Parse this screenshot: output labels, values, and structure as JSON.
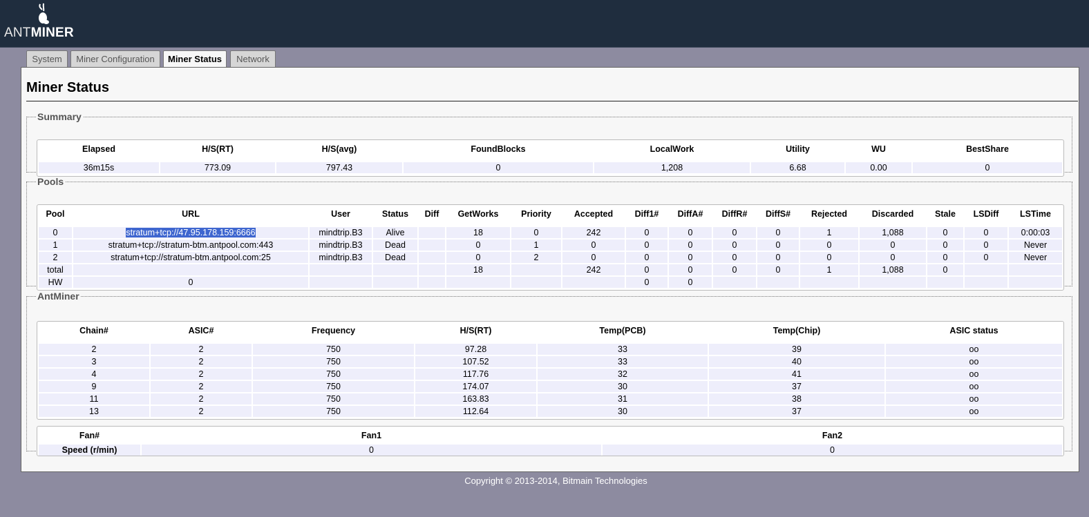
{
  "brand": {
    "name_part1": "ANT",
    "name_part2": "MINER"
  },
  "tabs": [
    {
      "label": "System",
      "active": false
    },
    {
      "label": "Miner Configuration",
      "active": false
    },
    {
      "label": "Miner Status",
      "active": true
    },
    {
      "label": "Network",
      "active": false
    }
  ],
  "page_title": "Miner Status",
  "summary": {
    "legend": "Summary",
    "headers": [
      "Elapsed",
      "H/S(RT)",
      "H/S(avg)",
      "FoundBlocks",
      "LocalWork",
      "Utility",
      "WU",
      "BestShare"
    ],
    "row": [
      "36m15s",
      "773.09",
      "797.43",
      "0",
      "1,208",
      "6.68",
      "0.00",
      "0"
    ]
  },
  "pools": {
    "legend": "Pools",
    "headers": [
      "Pool",
      "URL",
      "User",
      "Status",
      "Diff",
      "GetWorks",
      "Priority",
      "Accepted",
      "Diff1#",
      "DiffA#",
      "DiffR#",
      "DiffS#",
      "Rejected",
      "Discarded",
      "Stale",
      "LSDiff",
      "LSTime"
    ],
    "rows": [
      [
        "0",
        "stratum+tcp://47.95.178.159:6666",
        "mindtrip.B3",
        "Alive",
        "",
        "18",
        "0",
        "242",
        "0",
        "0",
        "0",
        "0",
        "1",
        "1,088",
        "0",
        "0",
        "0:00:03"
      ],
      [
        "1",
        "stratum+tcp://stratum-btm.antpool.com:443",
        "mindtrip.B3",
        "Dead",
        "",
        "0",
        "1",
        "0",
        "0",
        "0",
        "0",
        "0",
        "0",
        "0",
        "0",
        "0",
        "Never"
      ],
      [
        "2",
        "stratum+tcp://stratum-btm.antpool.com:25",
        "mindtrip.B3",
        "Dead",
        "",
        "0",
        "2",
        "0",
        "0",
        "0",
        "0",
        "0",
        "0",
        "0",
        "0",
        "0",
        "Never"
      ]
    ],
    "total_row": [
      "total",
      "",
      "",
      "",
      "",
      "18",
      "",
      "242",
      "0",
      "0",
      "0",
      "0",
      "1",
      "1,088",
      "0",
      "",
      ""
    ],
    "hw_row": [
      "HW",
      "0",
      "",
      "",
      "",
      "",
      "",
      "",
      "0",
      "0",
      "",
      "",
      "",
      "",
      "",
      "",
      ""
    ]
  },
  "antminer": {
    "legend": "AntMiner",
    "headers": [
      "Chain#",
      "ASIC#",
      "Frequency",
      "H/S(RT)",
      "Temp(PCB)",
      "Temp(Chip)",
      "ASIC status"
    ],
    "rows": [
      [
        "2",
        "2",
        "750",
        "97.28",
        "33",
        "39",
        "oo"
      ],
      [
        "3",
        "2",
        "750",
        "107.52",
        "33",
        "40",
        "oo"
      ],
      [
        "4",
        "2",
        "750",
        "117.76",
        "32",
        "41",
        "oo"
      ],
      [
        "9",
        "2",
        "750",
        "174.07",
        "30",
        "37",
        "oo"
      ],
      [
        "11",
        "2",
        "750",
        "163.83",
        "31",
        "38",
        "oo"
      ],
      [
        "13",
        "2",
        "750",
        "112.64",
        "30",
        "37",
        "oo"
      ]
    ],
    "fan_headers": [
      "Fan#",
      "Fan1",
      "Fan2"
    ],
    "fan_row": [
      "Speed (r/min)",
      "0",
      "0"
    ]
  },
  "footer": "Copyright © 2013-2014, Bitmain Technologies"
}
